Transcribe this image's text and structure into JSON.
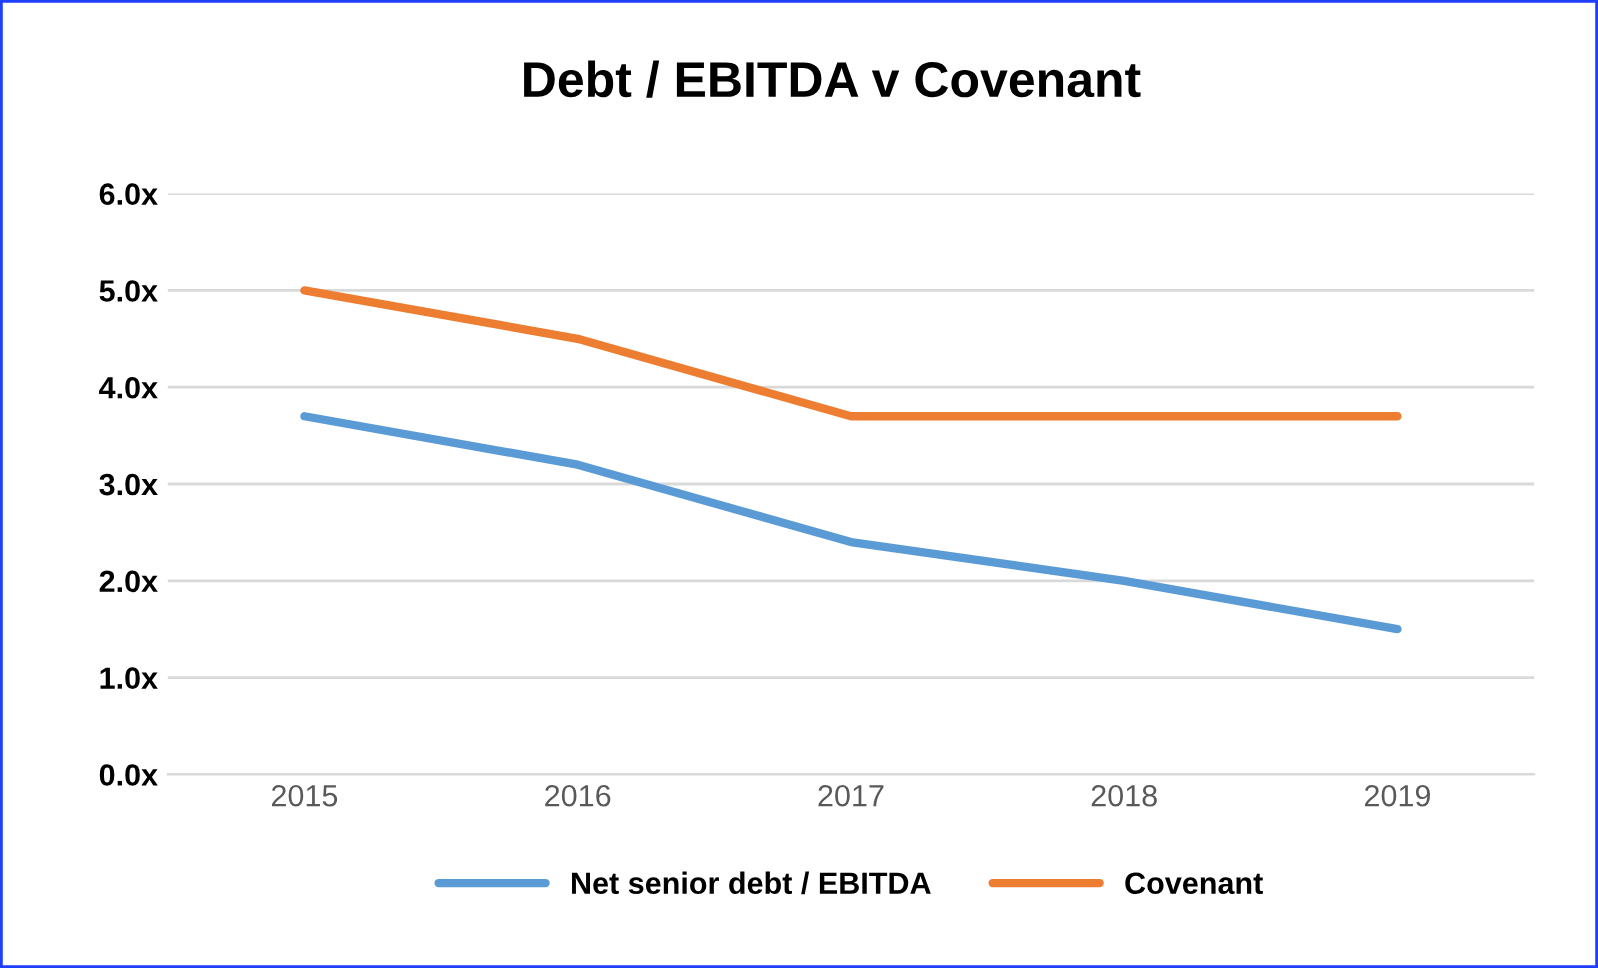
{
  "chart_data": {
    "type": "line",
    "title": "Debt / EBITDA v Covenant",
    "categories": [
      "2015",
      "2016",
      "2017",
      "2018",
      "2019"
    ],
    "series": [
      {
        "name": "Net senior debt / EBITDA",
        "color": "#5b9bd5",
        "values": [
          3.7,
          3.2,
          2.4,
          2.0,
          1.5
        ]
      },
      {
        "name": "Covenant",
        "color": "#ed7d31",
        "values": [
          5.0,
          4.5,
          3.7,
          3.7,
          3.7
        ]
      }
    ],
    "ylim": [
      0,
      6
    ],
    "yticks": [
      {
        "value": 0,
        "label": "0.0x"
      },
      {
        "value": 1,
        "label": "1.0x"
      },
      {
        "value": 2,
        "label": "2.0x"
      },
      {
        "value": 3,
        "label": "3.0x"
      },
      {
        "value": 4,
        "label": "4.0x"
      },
      {
        "value": 5,
        "label": "5.0x"
      },
      {
        "value": 6,
        "label": "6.0x"
      }
    ],
    "grid": "y",
    "legend": "bottom",
    "marker": "none",
    "line_style": "solid"
  }
}
